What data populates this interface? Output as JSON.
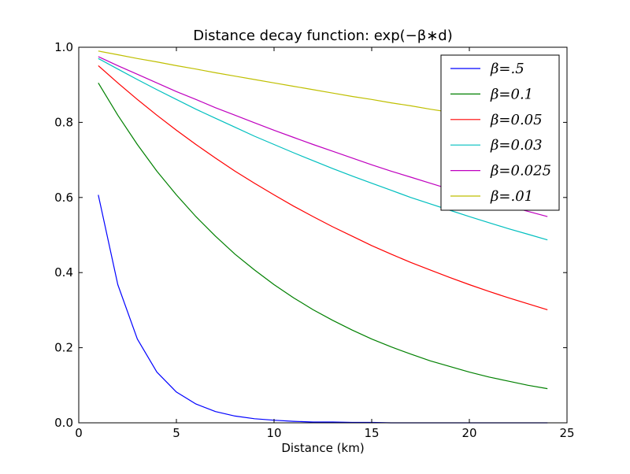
{
  "chart_data": {
    "type": "line",
    "title": "Distance decay function: exp(−β∗d)",
    "xlabel": "Distance (km)",
    "ylabel": "",
    "xlim": [
      0,
      25
    ],
    "ylim": [
      0,
      1.0
    ],
    "x_ticks": [
      0,
      5,
      10,
      15,
      20,
      25
    ],
    "x_tick_labels": [
      "0",
      "5",
      "10",
      "15",
      "20",
      "25"
    ],
    "y_ticks": [
      0,
      0.2,
      0.4,
      0.6,
      0.8,
      1.0
    ],
    "y_tick_labels": [
      "0.0",
      "0.2",
      "0.4",
      "0.6",
      "0.8",
      "1.0"
    ],
    "grid": false,
    "legend_position": "top-right",
    "x": [
      1,
      2,
      3,
      4,
      5,
      6,
      7,
      8,
      9,
      10,
      11,
      12,
      13,
      14,
      15,
      16,
      17,
      18,
      19,
      20,
      21,
      22,
      23,
      24
    ],
    "series": [
      {
        "name": "β=.5",
        "color": "#0000ff",
        "values": [
          0.607,
          0.368,
          0.223,
          0.135,
          0.082,
          0.05,
          0.03,
          0.018,
          0.011,
          0.007,
          0.004,
          0.002,
          0.002,
          0.001,
          0.001,
          0.0,
          0.0,
          0.0,
          0.0,
          0.0,
          0.0,
          0.0,
          0.0,
          0.0
        ]
      },
      {
        "name": "β=0.1",
        "color": "#008000",
        "values": [
          0.905,
          0.819,
          0.741,
          0.67,
          0.607,
          0.549,
          0.497,
          0.449,
          0.407,
          0.368,
          0.333,
          0.301,
          0.273,
          0.247,
          0.223,
          0.202,
          0.183,
          0.165,
          0.15,
          0.135,
          0.122,
          0.111,
          0.1,
          0.091
        ]
      },
      {
        "name": "β=0.05",
        "color": "#ff0000",
        "values": [
          0.951,
          0.905,
          0.861,
          0.819,
          0.779,
          0.741,
          0.705,
          0.67,
          0.638,
          0.607,
          0.577,
          0.549,
          0.522,
          0.497,
          0.472,
          0.449,
          0.427,
          0.407,
          0.387,
          0.368,
          0.35,
          0.333,
          0.317,
          0.301
        ]
      },
      {
        "name": "β=0.03",
        "color": "#00bfbf",
        "values": [
          0.97,
          0.942,
          0.914,
          0.887,
          0.861,
          0.835,
          0.811,
          0.787,
          0.763,
          0.741,
          0.719,
          0.698,
          0.677,
          0.657,
          0.638,
          0.619,
          0.6,
          0.583,
          0.566,
          0.549,
          0.533,
          0.517,
          0.502,
          0.487
        ]
      },
      {
        "name": "β=0.025",
        "color": "#bf00bf",
        "values": [
          0.975,
          0.951,
          0.928,
          0.905,
          0.882,
          0.861,
          0.839,
          0.819,
          0.799,
          0.779,
          0.76,
          0.741,
          0.723,
          0.705,
          0.687,
          0.67,
          0.654,
          0.638,
          0.622,
          0.607,
          0.592,
          0.577,
          0.563,
          0.549
        ]
      },
      {
        "name": "β=.01",
        "color": "#bfbf00",
        "values": [
          0.99,
          0.98,
          0.97,
          0.961,
          0.951,
          0.942,
          0.932,
          0.923,
          0.914,
          0.905,
          0.896,
          0.887,
          0.878,
          0.869,
          0.861,
          0.852,
          0.844,
          0.835,
          0.827,
          0.819,
          0.811,
          0.803,
          0.795,
          0.787
        ]
      }
    ]
  }
}
